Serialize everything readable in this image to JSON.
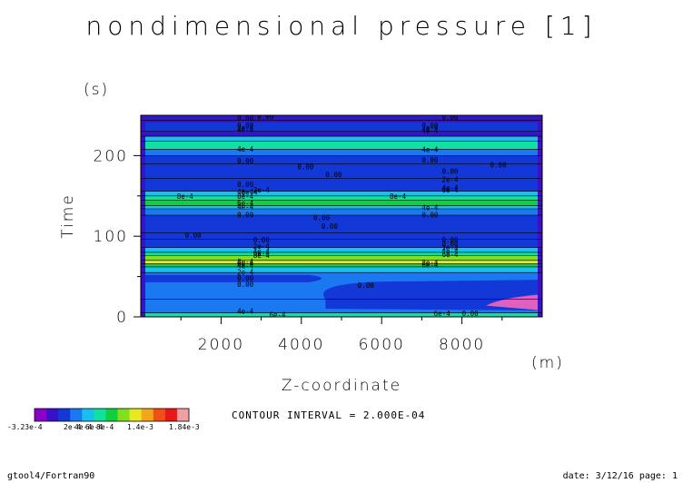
{
  "chart_data": {
    "type": "heatmap",
    "title": "nondimensional pressure [1]",
    "xlabel": "Z-coordinate",
    "xunit": "(m)",
    "ylabel": "Time",
    "yunit": "(s)",
    "xlim": [
      0,
      10000
    ],
    "ylim": [
      0,
      250
    ],
    "xticks": [
      2000,
      4000,
      6000,
      8000
    ],
    "yticks": [
      0,
      100,
      200
    ],
    "xtick_labels": [
      "2000",
      "4000",
      "6000",
      "8000"
    ],
    "ytick_labels": [
      "0",
      "100",
      "200"
    ],
    "contour_interval_text": "CONTOUR INTERVAL = 2.000E-04",
    "colorbar": {
      "colors": [
        "#8a00c8",
        "#3a10c8",
        "#1238d8",
        "#1a78f0",
        "#18c0f0",
        "#10e0a0",
        "#10d040",
        "#80e020",
        "#e8e820",
        "#f0a818",
        "#f05018",
        "#e81818",
        "#f0a0a0"
      ],
      "tick_labels": [
        "-3.23e-4",
        "2e-4",
        "4e-4",
        "6e-4",
        "8e-4",
        "1.4e-3",
        "1.84e-3"
      ]
    },
    "time_bands": [
      {
        "t0": 0,
        "t1": 5,
        "level": 5
      },
      {
        "t0": 5,
        "t1": 22,
        "level": 3
      },
      {
        "t0": 22,
        "t1": 55,
        "level": 3
      },
      {
        "t0": 55,
        "t1": 62,
        "level": 4
      },
      {
        "t0": 62,
        "t1": 66,
        "level": 6
      },
      {
        "t0": 66,
        "t1": 70,
        "level": 8
      },
      {
        "t0": 70,
        "t1": 76,
        "level": 7
      },
      {
        "t0": 76,
        "t1": 80,
        "level": 5
      },
      {
        "t0": 80,
        "t1": 86,
        "level": 4
      },
      {
        "t0": 86,
        "t1": 96,
        "level": 2
      },
      {
        "t0": 96,
        "t1": 104,
        "level": 2
      },
      {
        "t0": 104,
        "t1": 126,
        "level": 2
      },
      {
        "t0": 126,
        "t1": 134,
        "level": 3
      },
      {
        "t0": 134,
        "t1": 138,
        "level": 4
      },
      {
        "t0": 138,
        "t1": 145,
        "level": 6
      },
      {
        "t0": 145,
        "t1": 150,
        "level": 5
      },
      {
        "t0": 150,
        "t1": 156,
        "level": 4
      },
      {
        "t0": 156,
        "t1": 172,
        "level": 2
      },
      {
        "t0": 172,
        "t1": 190,
        "level": 2
      },
      {
        "t0": 190,
        "t1": 200,
        "level": 2
      },
      {
        "t0": 200,
        "t1": 208,
        "level": 3
      },
      {
        "t0": 208,
        "t1": 218,
        "level": 5
      },
      {
        "t0": 218,
        "t1": 224,
        "level": 4
      },
      {
        "t0": 224,
        "t1": 230,
        "level": 1
      },
      {
        "t0": 230,
        "t1": 244,
        "level": 2
      },
      {
        "t0": 244,
        "t1": 250,
        "level": 2
      }
    ],
    "contour_labels": [
      {
        "x": 2400,
        "t": 246,
        "text": "0.00"
      },
      {
        "x": 2900,
        "t": 248,
        "text": "0.00"
      },
      {
        "x": 2400,
        "t": 237,
        "text": "0.00"
      },
      {
        "x": 2400,
        "t": 234,
        "text": "2e-4"
      },
      {
        "x": 2400,
        "t": 232,
        "text": "4e-4"
      },
      {
        "x": 2400,
        "t": 208,
        "text": "4e-4"
      },
      {
        "x": 2400,
        "t": 193,
        "text": "0.00"
      },
      {
        "x": 3900,
        "t": 186,
        "text": "0.00"
      },
      {
        "x": 4600,
        "t": 176,
        "text": "0.00"
      },
      {
        "x": 2400,
        "t": 164,
        "text": "0.00"
      },
      {
        "x": 2800,
        "t": 157,
        "text": "2e-4"
      },
      {
        "x": 2400,
        "t": 155,
        "text": "4e-4"
      },
      {
        "x": 2500,
        "t": 154,
        "text": "6e-4"
      },
      {
        "x": 900,
        "t": 149,
        "text": "8e-4"
      },
      {
        "x": 2400,
        "t": 149,
        "text": "8e-4"
      },
      {
        "x": 2400,
        "t": 141,
        "text": "6e-4"
      },
      {
        "x": 2400,
        "t": 136,
        "text": "4e-4"
      },
      {
        "x": 2400,
        "t": 126,
        "text": "0.00"
      },
      {
        "x": 4300,
        "t": 123,
        "text": "0.00"
      },
      {
        "x": 4500,
        "t": 112,
        "text": "0.00"
      },
      {
        "x": 1100,
        "t": 101,
        "text": "0.00"
      },
      {
        "x": 2800,
        "t": 95,
        "text": "0.00"
      },
      {
        "x": 2800,
        "t": 87,
        "text": "2e-4"
      },
      {
        "x": 2800,
        "t": 81,
        "text": "4e-4"
      },
      {
        "x": 2800,
        "t": 79,
        "text": "6e-4"
      },
      {
        "x": 2800,
        "t": 76,
        "text": "8e-4"
      },
      {
        "x": 2400,
        "t": 68,
        "text": "8e-4"
      },
      {
        "x": 2400,
        "t": 66,
        "text": "6e-4"
      },
      {
        "x": 2400,
        "t": 63,
        "text": "4e-4"
      },
      {
        "x": 2400,
        "t": 55,
        "text": "2e-4"
      },
      {
        "x": 2400,
        "t": 48,
        "text": "0.00"
      },
      {
        "x": 2400,
        "t": 40,
        "text": "0.00"
      },
      {
        "x": 5400,
        "t": 39,
        "text": "0.00"
      },
      {
        "x": 2400,
        "t": 7,
        "text": "4e-4"
      },
      {
        "x": 3200,
        "t": 2,
        "text": "6e-4"
      },
      {
        "x": 7000,
        "t": 237,
        "text": "0.00"
      },
      {
        "x": 7500,
        "t": 247,
        "text": "0.00"
      },
      {
        "x": 7000,
        "t": 234,
        "text": "2e-4"
      },
      {
        "x": 7000,
        "t": 231,
        "text": "4e-4"
      },
      {
        "x": 7000,
        "t": 207,
        "text": "4e-4"
      },
      {
        "x": 7000,
        "t": 194,
        "text": "0.00"
      },
      {
        "x": 7500,
        "t": 180,
        "text": "0.00"
      },
      {
        "x": 7500,
        "t": 170,
        "text": "2e-4"
      },
      {
        "x": 7500,
        "t": 160,
        "text": "4e-4"
      },
      {
        "x": 7500,
        "t": 157,
        "text": "6e-4"
      },
      {
        "x": 6200,
        "t": 149,
        "text": "8e-4"
      },
      {
        "x": 7000,
        "t": 135,
        "text": "4e-4"
      },
      {
        "x": 7000,
        "t": 126,
        "text": "0.00"
      },
      {
        "x": 7500,
        "t": 95,
        "text": "0.00"
      },
      {
        "x": 7500,
        "t": 90,
        "text": "0.00"
      },
      {
        "x": 7500,
        "t": 85,
        "text": "2e-4"
      },
      {
        "x": 7500,
        "t": 81,
        "text": "4e-4"
      },
      {
        "x": 7500,
        "t": 77,
        "text": "6e-4"
      },
      {
        "x": 7000,
        "t": 67,
        "text": "8e-4"
      },
      {
        "x": 7000,
        "t": 64,
        "text": "6e-4"
      },
      {
        "x": 8700,
        "t": 188,
        "text": "0.00"
      },
      {
        "x": 7300,
        "t": 4,
        "text": "6e-4"
      },
      {
        "x": 8000,
        "t": 4,
        "text": "0.00"
      }
    ]
  },
  "footer": {
    "left": "gtool4/Fortran90",
    "right": "date: 3/12/16 page: 1"
  }
}
